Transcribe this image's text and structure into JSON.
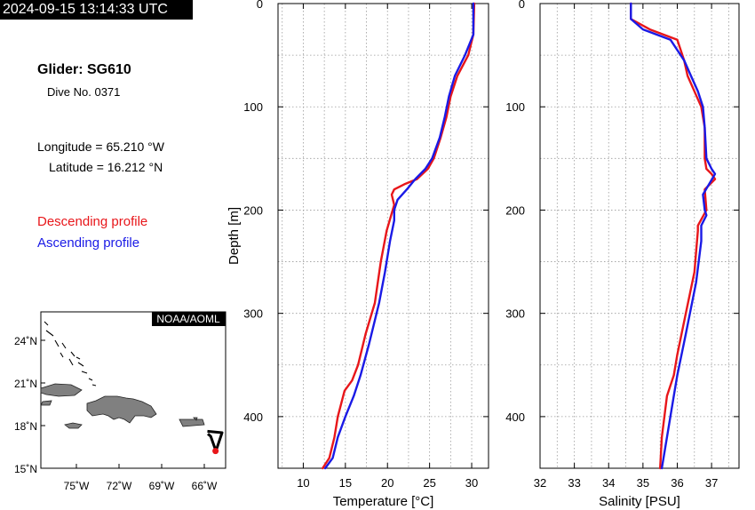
{
  "header": {
    "timestamp": "2024-09-15 13:14:33 UTC",
    "glider": "Glider: SG610",
    "dive": "Dive No. 0371",
    "longitude": "Longitude = 65.210 °W",
    "latitude": "Latitude = 16.212 °N"
  },
  "legend": {
    "descending": "Descending profile",
    "ascending": "Ascending profile",
    "descending_color": "#e8161a",
    "ascending_color": "#1a1ae6"
  },
  "map": {
    "credit": "NOAA/AOML",
    "lat_labels": [
      "24˚N",
      "21˚N",
      "18˚N",
      "15˚N"
    ],
    "lon_labels": [
      "75˚W",
      "72˚W",
      "69˚W",
      "66˚W"
    ],
    "lon_range": [
      -77.5,
      -64.5
    ],
    "lat_range": [
      15,
      26
    ],
    "track": [
      [
        -65.78,
        17.6
      ],
      [
        -64.75,
        17.5
      ],
      [
        -65.18,
        16.21
      ],
      [
        -65.55,
        17.25
      ],
      [
        -65.75,
        17.42
      ]
    ],
    "glider_position": [
      -65.21,
      16.21
    ]
  },
  "chart_data": [
    {
      "type": "line",
      "xlabel": "Temperature [°C]",
      "ylabel": "Depth [m]",
      "xlim": [
        7,
        32
      ],
      "ylim": [
        0,
        450
      ],
      "y_inverted": true,
      "x_ticks": [
        10,
        15,
        20,
        25,
        30
      ],
      "y_ticks": [
        0,
        100,
        200,
        300,
        400
      ],
      "grid": true,
      "series": [
        {
          "name": "Descending profile",
          "color": "#e8161a",
          "x": [
            30.3,
            30.2,
            29.6,
            28.3,
            27.5,
            27.0,
            26.3,
            25.5,
            24.8,
            23.5,
            22.0,
            20.8,
            20.5,
            20.8,
            19.9,
            19.2,
            18.5,
            17.4,
            16.5,
            15.8,
            14.9,
            14.1,
            13.7,
            13.1,
            12.3
          ],
          "y": [
            0,
            30,
            50,
            70,
            90,
            110,
            130,
            150,
            160,
            170,
            175,
            180,
            185,
            195,
            220,
            250,
            290,
            320,
            350,
            365,
            375,
            400,
            420,
            440,
            450
          ]
        },
        {
          "name": "Ascending profile",
          "color": "#1a1ae6",
          "x": [
            30.2,
            30.2,
            29.2,
            28.0,
            27.3,
            26.8,
            26.2,
            25.3,
            24.5,
            23.3,
            22.3,
            21.2,
            20.8,
            20.8,
            20.3,
            19.7,
            19.0,
            17.8,
            16.8,
            16.0,
            15.0,
            14.1,
            13.5,
            12.6
          ],
          "y": [
            0,
            30,
            50,
            70,
            90,
            110,
            130,
            150,
            160,
            170,
            180,
            190,
            200,
            210,
            230,
            260,
            290,
            330,
            360,
            380,
            400,
            420,
            440,
            450
          ]
        }
      ]
    },
    {
      "type": "line",
      "xlabel": "Salinity [PSU]",
      "ylabel": "",
      "xlim": [
        32,
        37.8
      ],
      "ylim": [
        0,
        450
      ],
      "y_inverted": true,
      "x_ticks": [
        32,
        33,
        34,
        35,
        36,
        37
      ],
      "y_ticks": [
        0,
        100,
        200,
        300,
        400
      ],
      "grid": true,
      "series": [
        {
          "name": "Descending profile",
          "color": "#e8161a",
          "x": [
            34.65,
            34.65,
            35.2,
            36.0,
            36.2,
            36.3,
            36.5,
            36.7,
            36.8,
            36.8,
            36.85,
            37.0,
            37.1,
            36.8,
            36.85,
            36.6,
            36.6,
            36.5,
            36.25,
            36.0,
            35.9,
            35.7,
            35.55,
            35.5
          ],
          "y": [
            0,
            15,
            25,
            35,
            55,
            70,
            85,
            100,
            120,
            150,
            160,
            165,
            170,
            180,
            200,
            215,
            220,
            260,
            300,
            340,
            360,
            380,
            420,
            450
          ]
        },
        {
          "name": "Ascending profile",
          "color": "#1a1ae6",
          "x": [
            34.65,
            34.65,
            35.0,
            35.8,
            36.2,
            36.4,
            36.6,
            36.75,
            36.8,
            36.85,
            37.0,
            37.1,
            36.75,
            36.8,
            36.85,
            36.7,
            36.7,
            36.55,
            36.25,
            36.0,
            35.9,
            35.7,
            35.55
          ],
          "y": [
            0,
            15,
            25,
            35,
            55,
            70,
            85,
            100,
            120,
            150,
            160,
            165,
            185,
            200,
            205,
            215,
            230,
            270,
            320,
            360,
            380,
            420,
            450
          ]
        }
      ]
    }
  ]
}
